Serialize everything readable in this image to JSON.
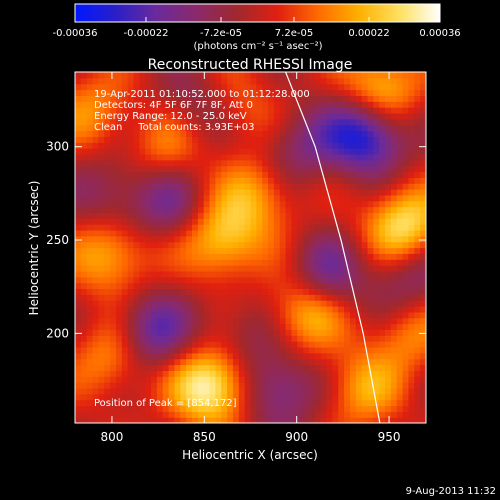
{
  "colorbar": {
    "tick_labels": [
      "-0.00036",
      "-0.00022",
      "-7.2e-05",
      "7.2e-05",
      "0.00022",
      "0.00036"
    ],
    "unit_label": "(photons cm⁻² s⁻¹ asec⁻²)",
    "vmin": -0.00036,
    "vmax": 0.00036,
    "colors": [
      "#0018ff",
      "#2a1fc8",
      "#6a2a9c",
      "#8a2a6a",
      "#a0282e",
      "#e02010",
      "#ff6a00",
      "#ffb000",
      "#ffe060",
      "#ffffff"
    ]
  },
  "chart_data": {
    "type": "heatmap",
    "title": "Reconstructed RHESSI Image",
    "xlabel": "Heliocentric X (arcsec)",
    "ylabel": "Heliocentric Y (arcsec)",
    "xlim": [
      780,
      970
    ],
    "ylim": [
      152,
      340
    ],
    "x_ticks": [
      800,
      850,
      900,
      950
    ],
    "y_ticks": [
      200,
      250,
      300
    ],
    "annotations": [
      "19-Apr-2011 01:10:52.000 to 01:12:28.000",
      "Detectors: 4F 5F 6F 7F 8F, Att 0",
      "Energy Range: 12.0 - 25.0 keV",
      "Clean     Total counts: 3.93E+03"
    ],
    "peak_label": "Position of Peak = [854,172]",
    "peak": [
      854,
      172
    ],
    "limb_curve": [
      [
        894,
        340
      ],
      [
        910,
        300
      ],
      [
        924,
        250
      ],
      [
        936,
        200
      ],
      [
        945,
        152
      ]
    ],
    "sources": [
      {
        "x": 854,
        "y": 172,
        "value": 0.00036
      },
      {
        "x": 958,
        "y": 258,
        "value": 0.0003
      },
      {
        "x": 945,
        "y": 330,
        "value": 0.00028
      },
      {
        "x": 860,
        "y": 250,
        "value": 0.00025
      },
      {
        "x": 905,
        "y": 212,
        "value": 0.00025
      },
      {
        "x": 800,
        "y": 242,
        "value": 0.00022
      },
      {
        "x": 802,
        "y": 188,
        "value": 0.0002
      },
      {
        "x": 880,
        "y": 275,
        "value": 0.00018
      },
      {
        "x": 935,
        "y": 170,
        "value": 0.00018
      },
      {
        "x": 830,
        "y": 300,
        "value": 0.00015
      },
      {
        "x": 790,
        "y": 320,
        "value": 0.00015
      },
      {
        "x": 870,
        "y": 320,
        "value": 0.00012
      },
      {
        "x": 960,
        "y": 200,
        "value": 0.00015
      },
      {
        "x": 938,
        "y": 308,
        "value": -0.00036
      },
      {
        "x": 820,
        "y": 200,
        "value": -0.00025
      },
      {
        "x": 915,
        "y": 230,
        "value": -0.0002
      },
      {
        "x": 890,
        "y": 170,
        "value": -0.0002
      },
      {
        "x": 830,
        "y": 270,
        "value": -0.00015
      },
      {
        "x": 900,
        "y": 300,
        "value": -0.00015
      },
      {
        "x": 845,
        "y": 320,
        "value": -0.00012
      },
      {
        "x": 800,
        "y": 275,
        "value": -0.00012
      },
      {
        "x": 960,
        "y": 230,
        "value": -0.00015
      },
      {
        "x": 870,
        "y": 200,
        "value": -0.0001
      }
    ]
  },
  "footer": {
    "timestamp": "9-Aug-2013 11:32"
  }
}
